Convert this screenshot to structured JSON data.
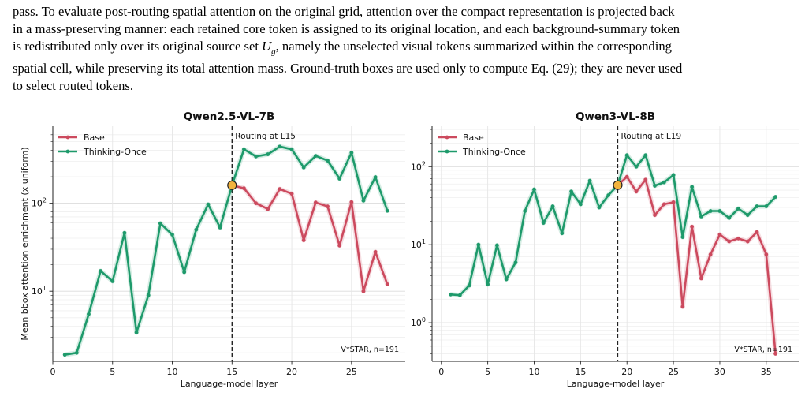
{
  "text": {
    "l1": "pass. To evaluate post-routing spatial attention on the original grid, attention over the compact representation is projected back",
    "l2": "in a mass-preserving manner: each retained core token is assigned to its original location, and each background-summary token",
    "l3a": "is redistributed only over its original source set ",
    "l3_sym": "U",
    "l3_sub": "g",
    "l3b": ", namely the unselected visual tokens summarized within the corresponding",
    "l4": "spatial cell, while preserving its total attention mass. Ground-truth boxes are used only to compute Eq. (29); they are never used",
    "l5": "to select routed tokens."
  },
  "colors": {
    "base": "#cc4a5e",
    "thinking": "#1e9a6b",
    "marker": "#f2b33d"
  },
  "chart_data": [
    {
      "type": "line",
      "title": "Qwen2.5-VL-7B",
      "xlabel": "Language-model layer",
      "ylabel": "Mean bbox attention enrichment (x uniform)",
      "yscale": "log",
      "xlim": [
        0,
        29.5
      ],
      "ylim": [
        1.6,
        750
      ],
      "xticks": [
        0,
        5,
        10,
        15,
        20,
        25
      ],
      "yticks": [
        {
          "v": 10,
          "base": "10",
          "exp": "1"
        },
        {
          "v": 100,
          "base": "10",
          "exp": "2"
        }
      ],
      "grid": true,
      "legend": "top-left",
      "routing_layer": 15,
      "routing_label": "Routing at L15",
      "annotation": "V*STAR, n=191",
      "series": [
        {
          "name": "Base",
          "x": [
            15,
            16,
            17,
            18,
            19,
            20,
            21,
            22,
            23,
            24,
            25,
            26,
            27,
            28
          ],
          "y": [
            160,
            148,
            100,
            86,
            145,
            128,
            38,
            102,
            92,
            33,
            103,
            10,
            28,
            12
          ]
        },
        {
          "name": "Thinking-Once",
          "x": [
            1,
            2,
            3,
            4,
            5,
            6,
            7,
            8,
            9,
            10,
            11,
            12,
            13,
            14,
            15,
            16,
            17,
            18,
            19,
            20,
            21,
            22,
            23,
            24,
            25,
            26,
            27,
            28
          ],
          "y": [
            1.9,
            2.0,
            5.5,
            17,
            13,
            46,
            3.4,
            9,
            59,
            44,
            16.5,
            50,
            97,
            53,
            160,
            410,
            340,
            360,
            440,
            410,
            255,
            345,
            305,
            190,
            375,
            107,
            198,
            82
          ]
        }
      ]
    },
    {
      "type": "line",
      "title": "Qwen3-VL-8B",
      "xlabel": "Language-model layer",
      "ylabel": "",
      "yscale": "log",
      "xlim": [
        -1,
        38.5
      ],
      "ylim": [
        0.32,
        330
      ],
      "xticks": [
        0,
        5,
        10,
        15,
        20,
        25,
        30,
        35
      ],
      "yticks": [
        {
          "v": 1,
          "base": "10",
          "exp": "0"
        },
        {
          "v": 10,
          "base": "10",
          "exp": "1"
        },
        {
          "v": 100,
          "base": "10",
          "exp": "2"
        }
      ],
      "grid": true,
      "legend": "top-left",
      "routing_layer": 19,
      "routing_label": "Routing at L19",
      "annotation": "V*STAR, n=191",
      "series": [
        {
          "name": "Base",
          "x": [
            19,
            20,
            21,
            22,
            23,
            24,
            25,
            26,
            27,
            28,
            29,
            30,
            31,
            32,
            33,
            34,
            35,
            36
          ],
          "y": [
            58,
            74,
            48,
            68,
            24,
            33,
            35,
            1.6,
            17,
            3.7,
            7.5,
            13.5,
            11,
            12,
            11,
            14.5,
            7.5,
            0.4
          ]
        },
        {
          "name": "Thinking-Once",
          "x": [
            1,
            2,
            3,
            4,
            5,
            6,
            7,
            8,
            9,
            10,
            11,
            12,
            13,
            14,
            15,
            16,
            17,
            18,
            19,
            20,
            21,
            22,
            23,
            24,
            25,
            26,
            27,
            28,
            29,
            30,
            31,
            32,
            33,
            34,
            35,
            36
          ],
          "y": [
            2.3,
            2.25,
            3.0,
            10,
            3.1,
            9.8,
            3.6,
            5.9,
            27,
            51,
            19,
            31,
            14,
            48,
            33,
            66,
            30,
            43,
            58,
            140,
            100,
            140,
            57,
            63,
            78,
            12.5,
            55,
            23,
            27,
            27,
            22,
            29,
            24,
            31,
            31,
            41
          ]
        }
      ]
    }
  ]
}
